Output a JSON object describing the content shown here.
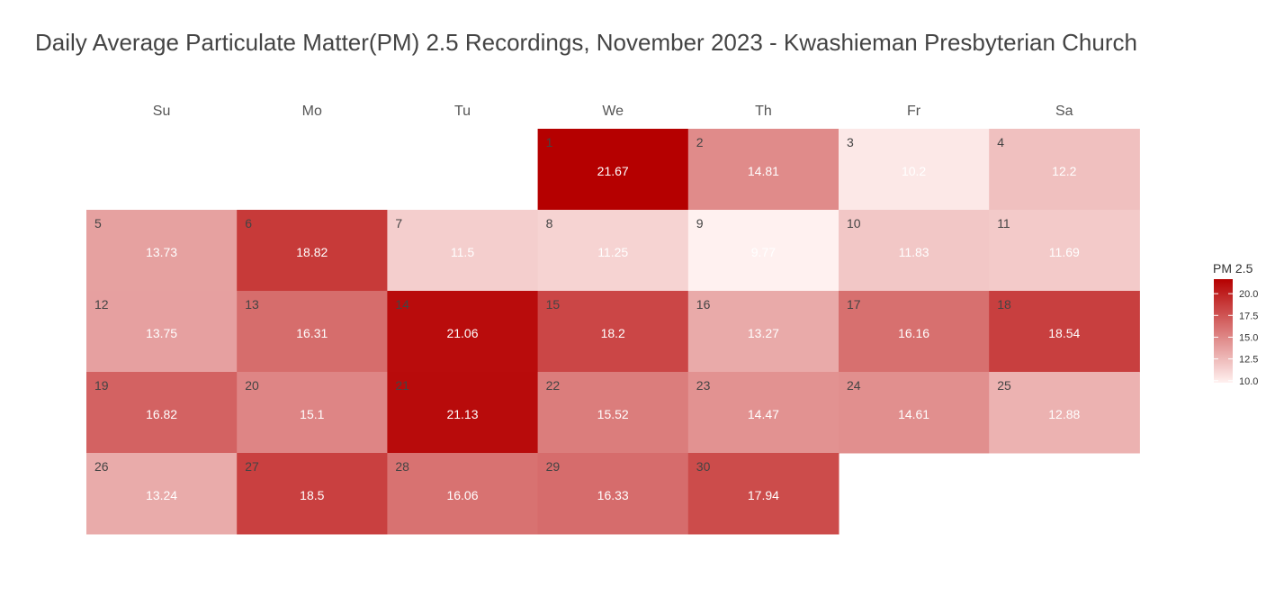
{
  "title": "Daily Average Particulate Matter(PM) 2.5 Recordings, November 2023 - Kwashieman Presbyterian Church",
  "chart_data": {
    "type": "heatmap",
    "title": "Daily Average Particulate Matter(PM) 2.5 Recordings, November 2023 - Kwashieman Presbyterian Church",
    "weekdays": [
      "Su",
      "Mo",
      "Tu",
      "We",
      "Th",
      "Fr",
      "Sa"
    ],
    "first_weekday_index": 3,
    "days": [
      {
        "day": 1,
        "value": 21.67
      },
      {
        "day": 2,
        "value": 14.81
      },
      {
        "day": 3,
        "value": 10.2
      },
      {
        "day": 4,
        "value": 12.2
      },
      {
        "day": 5,
        "value": 13.73
      },
      {
        "day": 6,
        "value": 18.82
      },
      {
        "day": 7,
        "value": 11.5
      },
      {
        "day": 8,
        "value": 11.25
      },
      {
        "day": 9,
        "value": 9.77
      },
      {
        "day": 10,
        "value": 11.83
      },
      {
        "day": 11,
        "value": 11.69
      },
      {
        "day": 12,
        "value": 13.75
      },
      {
        "day": 13,
        "value": 16.31
      },
      {
        "day": 14,
        "value": 21.06
      },
      {
        "day": 15,
        "value": 18.2
      },
      {
        "day": 16,
        "value": 13.27
      },
      {
        "day": 17,
        "value": 16.16
      },
      {
        "day": 18,
        "value": 18.54
      },
      {
        "day": 19,
        "value": 16.82
      },
      {
        "day": 20,
        "value": 15.1
      },
      {
        "day": 21,
        "value": 21.13
      },
      {
        "day": 22,
        "value": 15.52
      },
      {
        "day": 23,
        "value": 14.47
      },
      {
        "day": 24,
        "value": 14.61
      },
      {
        "day": 25,
        "value": 12.88
      },
      {
        "day": 26,
        "value": 13.24
      },
      {
        "day": 27,
        "value": 18.5
      },
      {
        "day": 28,
        "value": 16.06
      },
      {
        "day": 29,
        "value": 16.33
      },
      {
        "day": 30,
        "value": 17.94
      }
    ],
    "color_scale": {
      "low_color": "#fff1f0",
      "high_color": "#b50000",
      "min": 9.77,
      "max": 21.67
    },
    "legend": {
      "title": "PM 2.5",
      "placement": "right",
      "ticks": [
        {
          "value": 10,
          "label": "10.0"
        },
        {
          "value": 12.5,
          "label": "12.5"
        },
        {
          "value": 15,
          "label": "15.0"
        },
        {
          "value": 17.5,
          "label": "17.5"
        },
        {
          "value": 20,
          "label": "20.0"
        }
      ]
    },
    "grid": false
  }
}
